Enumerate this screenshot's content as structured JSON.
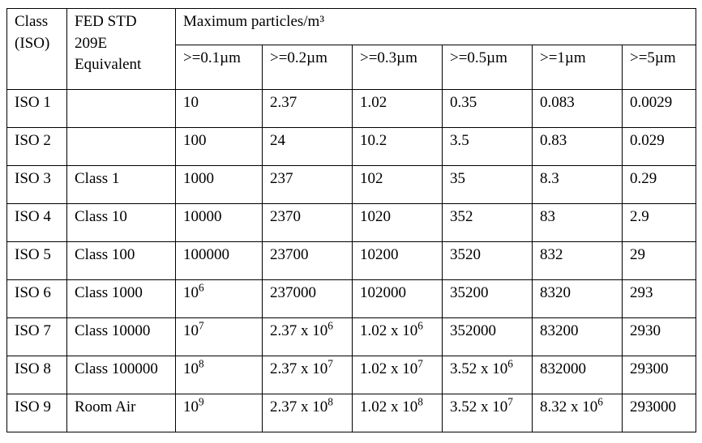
{
  "table": {
    "header": {
      "class_iso": "Class (ISO)",
      "fed_std": "FED STD 209E Equivalent",
      "max_particles": "Maximum particles/m³",
      "sizes": [
        ">=0.1µm",
        ">=0.2µm",
        ">=0.3µm",
        ">=0.5µm",
        ">=1µm",
        ">=5µm"
      ]
    },
    "rows": [
      {
        "cells": [
          "ISO 1",
          "",
          "10",
          "2.37",
          "1.02",
          "0.35",
          "0.083",
          "0.0029"
        ]
      },
      {
        "cells": [
          "ISO 2",
          "",
          "100",
          "24",
          "10.2",
          "3.5",
          "0.83",
          "0.029"
        ]
      },
      {
        "cells": [
          "ISO 3",
          "Class 1",
          "1000",
          "237",
          "102",
          "35",
          "8.3",
          "0.29"
        ]
      },
      {
        "cells": [
          "ISO 4",
          "Class 10",
          "10000",
          "2370",
          "1020",
          "352",
          "83",
          "2.9"
        ]
      },
      {
        "cells": [
          "ISO 5",
          "Class 100",
          "100000",
          "23700",
          "10200",
          "3520",
          "832",
          "29"
        ]
      },
      {
        "cells": [
          "ISO 6",
          "Class 1000",
          "10^6",
          "237000",
          "102000",
          "35200",
          "8320",
          "293"
        ]
      },
      {
        "cells": [
          "ISO 7",
          "Class 10000",
          "10^7",
          "2.37 x 10^6",
          "1.02 x 10^6",
          "352000",
          "83200",
          "2930"
        ]
      },
      {
        "cells": [
          "ISO 8",
          "Class 100000",
          "10^8",
          "2.37 x 10^7",
          "1.02 x 10^7",
          "3.52 x 10^6",
          "832000",
          "29300"
        ]
      },
      {
        "cells": [
          "ISO 9",
          "Room Air",
          "10^9",
          "2.37 x 10^8",
          "1.02 x 10^8",
          "3.52 x 10^7",
          "8.32 x 10^6",
          "293000"
        ]
      }
    ]
  }
}
